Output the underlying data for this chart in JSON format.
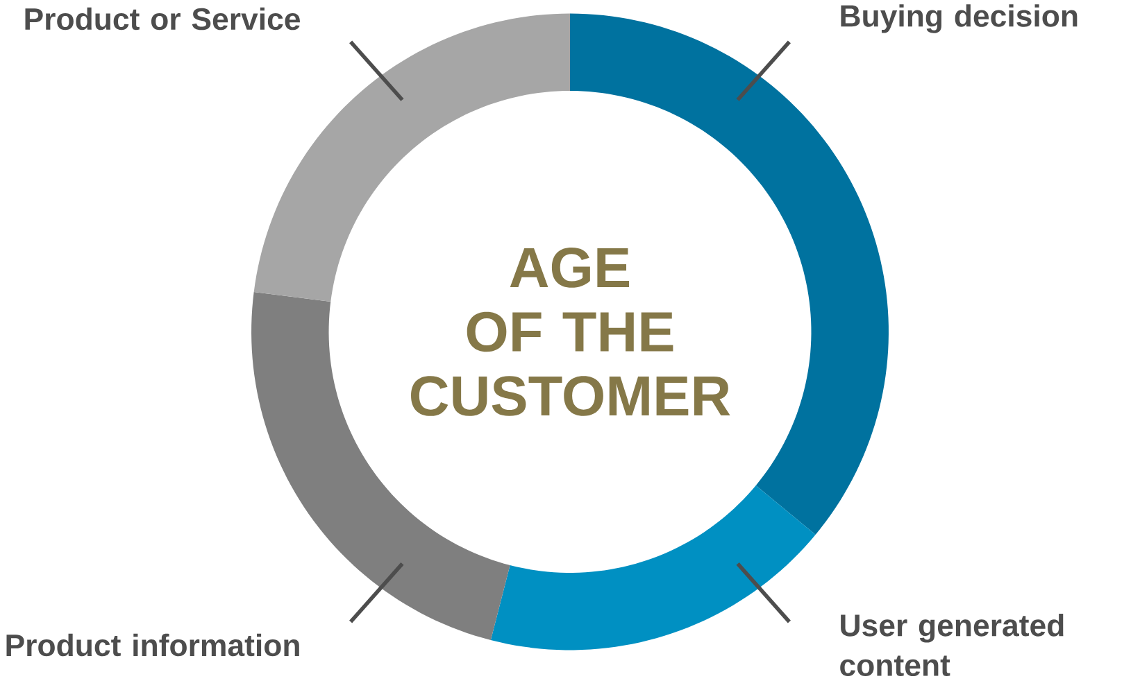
{
  "chart_data": {
    "type": "donut",
    "title": "AGE OF THE CUSTOMER",
    "categories": [
      "Buying decision",
      "User generated content",
      "Product information",
      "Product or Service"
    ],
    "values": [
      36,
      18,
      23,
      23
    ],
    "colors": [
      "#00729f",
      "#0090c2",
      "#7f7f7f",
      "#a6a6a6"
    ]
  }
}
